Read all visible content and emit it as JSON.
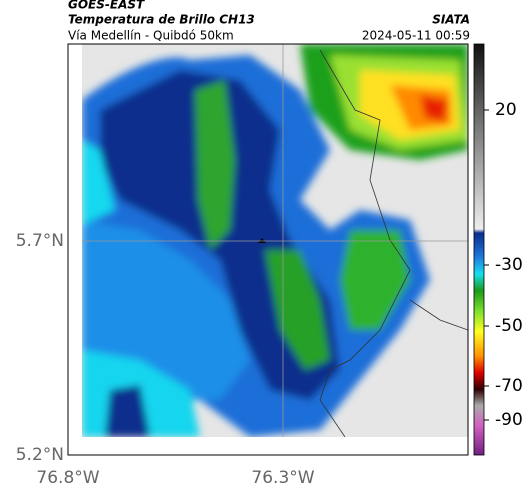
{
  "header": {
    "source": "GOES-EAST",
    "title": "Temperatura de Brillo CH13",
    "brand": "SIATA",
    "route": "Vía Medellín - Quibdó 50km",
    "timestamp": "2024-05-11 00:59"
  },
  "map": {
    "lat_labels": [
      "5.7°N",
      "5.2°N"
    ],
    "lon_labels": [
      "76.8°W",
      "76.3°W"
    ]
  },
  "colorbar": {
    "tick_labels": [
      "20",
      "-30",
      "-50",
      "-70",
      "-90"
    ]
  }
}
